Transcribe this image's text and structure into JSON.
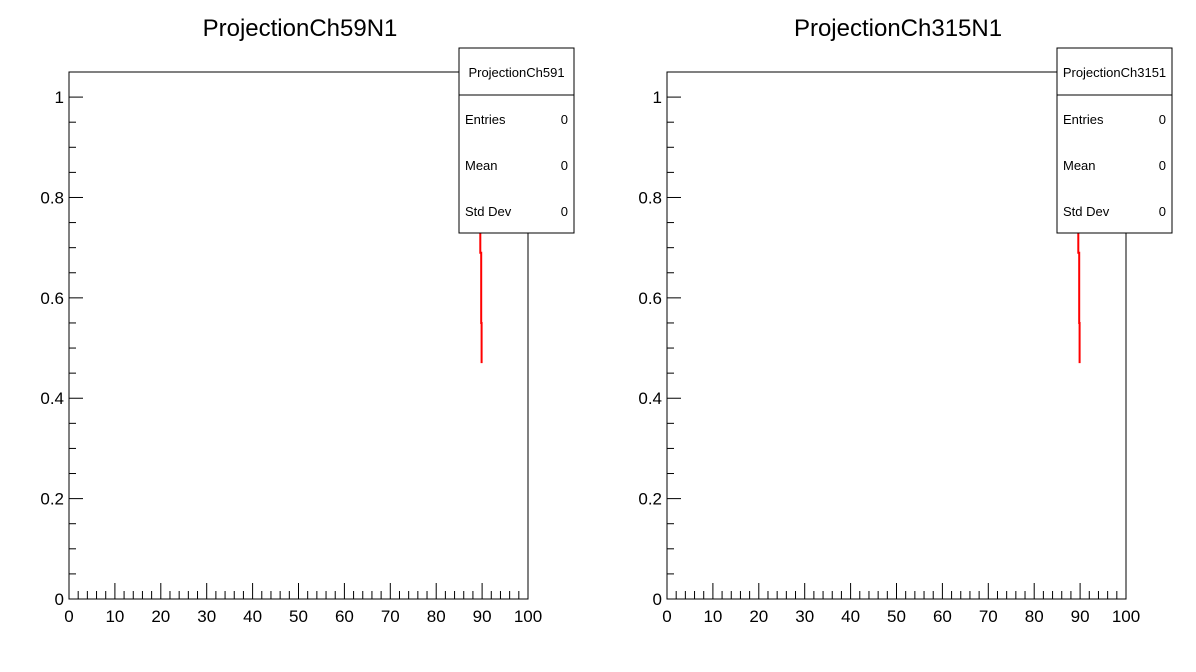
{
  "canvas_title": "ROOT canvas with two projection histograms",
  "colors": {
    "line": "#ff0000",
    "axis": "#000000",
    "background": "#ffffff"
  },
  "chart_data": [
    {
      "type": "line",
      "title": "ProjectionCh59N1",
      "xlabel": "",
      "ylabel": "",
      "xlim": [
        0,
        100
      ],
      "ylim": [
        0,
        1.05
      ],
      "x_ticks": [
        "0",
        "10",
        "20",
        "30",
        "40",
        "50",
        "60",
        "70",
        "80",
        "90",
        "100"
      ],
      "y_ticks": [
        "0",
        "0.2",
        "0.4",
        "0.6",
        "0.8",
        "1"
      ],
      "series": [
        {
          "name": "ProjectionCh59N1",
          "color": "#ff0000",
          "x": [
            88.8,
            88.8,
            89.0,
            89.0,
            89.2,
            89.2,
            89.4,
            89.4,
            89.6,
            89.6,
            89.8,
            89.8,
            89.9,
            89.9
          ],
          "y": [
            1.05,
            0.99,
            0.99,
            0.93,
            0.93,
            0.84,
            0.84,
            0.77,
            0.77,
            0.69,
            0.69,
            0.55,
            0.55,
            0.47
          ]
        }
      ],
      "stats": {
        "name": "ProjectionCh591",
        "rows": [
          {
            "label": "Entries",
            "value": "0"
          },
          {
            "label": "Mean",
            "value": "0"
          },
          {
            "label": "Std Dev",
            "value": "0"
          }
        ]
      }
    },
    {
      "type": "line",
      "title": "ProjectionCh315N1",
      "xlabel": "",
      "ylabel": "",
      "xlim": [
        0,
        100
      ],
      "ylim": [
        0,
        1.05
      ],
      "x_ticks": [
        "0",
        "10",
        "20",
        "30",
        "40",
        "50",
        "60",
        "70",
        "80",
        "90",
        "100"
      ],
      "y_ticks": [
        "0",
        "0.2",
        "0.4",
        "0.6",
        "0.8",
        "1"
      ],
      "series": [
        {
          "name": "ProjectionCh315N1",
          "color": "#ff0000",
          "x": [
            88.8,
            88.8,
            89.0,
            89.0,
            89.2,
            89.2,
            89.4,
            89.4,
            89.6,
            89.6,
            89.8,
            89.8,
            89.9,
            89.9
          ],
          "y": [
            1.05,
            0.99,
            0.99,
            0.93,
            0.93,
            0.84,
            0.84,
            0.77,
            0.77,
            0.69,
            0.69,
            0.55,
            0.55,
            0.47
          ]
        }
      ],
      "stats": {
        "name": "ProjectionCh3151",
        "rows": [
          {
            "label": "Entries",
            "value": "0"
          },
          {
            "label": "Mean",
            "value": "0"
          },
          {
            "label": "Std Dev",
            "value": "0"
          }
        ]
      }
    }
  ]
}
